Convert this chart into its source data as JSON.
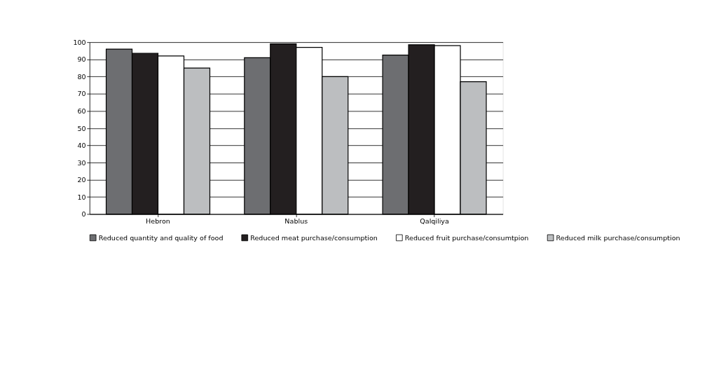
{
  "chart_data": {
    "type": "bar",
    "categories": [
      "Hebron",
      "Nablus",
      "Qalqiliya"
    ],
    "series": [
      {
        "name": "Reduced quantity and quality of food",
        "color": "#6d6e71",
        "values": [
          96,
          91,
          92.5
        ]
      },
      {
        "name": "Reduced meat purchase/consumption",
        "color": "#231f20",
        "values": [
          93.5,
          99,
          98.5
        ]
      },
      {
        "name": "Reduced fruit purchase/consumtpion",
        "color": "#ffffff",
        "values": [
          92,
          97,
          98
        ]
      },
      {
        "name": "Reduced milk purchase/consumption",
        "color": "#bcbec0",
        "values": [
          85,
          80,
          77
        ]
      }
    ],
    "ylim": [
      0,
      100
    ],
    "yticks": [
      0,
      10,
      20,
      30,
      40,
      50,
      60,
      70,
      80,
      90,
      100
    ],
    "grid": "y",
    "legend": "bottom"
  }
}
